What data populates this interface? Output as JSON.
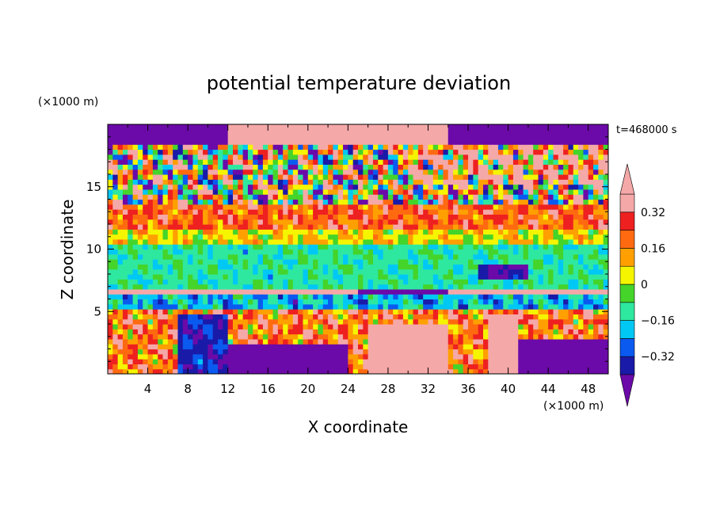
{
  "chart_data": {
    "type": "heatmap",
    "title": "potential temperature deviation",
    "xlabel": "X coordinate",
    "ylabel": "Z coordinate",
    "x_unit": "(×1000 m)",
    "y_unit": "(×1000 m)",
    "time_label": "t=468000 s",
    "xlim": [
      0,
      50
    ],
    "ylim": [
      0,
      20
    ],
    "x_ticks": [
      4,
      8,
      12,
      16,
      20,
      24,
      28,
      32,
      36,
      40,
      44,
      48
    ],
    "y_ticks": [
      5,
      10,
      15
    ],
    "colorbar": {
      "levels": [
        -0.4,
        -0.32,
        -0.24,
        -0.16,
        -0.08,
        0,
        0.08,
        0.16,
        0.24,
        0.32,
        0.4
      ],
      "colors": [
        "#6b0aa8",
        "#1a1aa8",
        "#0a5af0",
        "#00c8f5",
        "#2ee8a0",
        "#44d42a",
        "#f5f500",
        "#ffa000",
        "#ff6a10",
        "#ee2020",
        "#f5a8a8",
        "#f5a8a8"
      ],
      "tick_labels": [
        "0.32",
        "0.16",
        "0",
        "−0.16",
        "−0.32"
      ],
      "tick_values": [
        0.32,
        0.16,
        0,
        -0.16,
        -0.32
      ],
      "extend": "both"
    }
  }
}
